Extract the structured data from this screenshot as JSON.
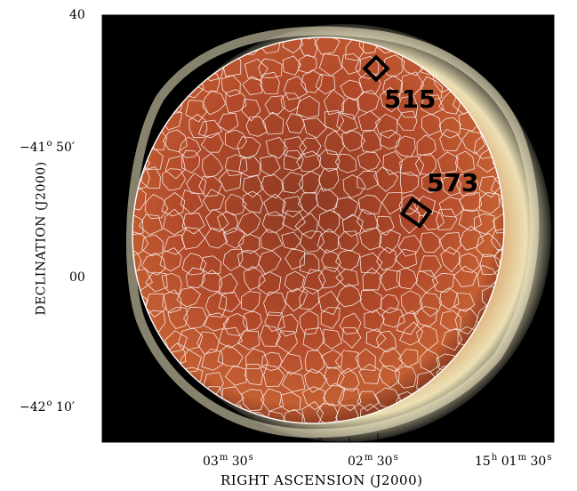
{
  "axes": {
    "y_title": "DECLINATION (J2000)",
    "x_title": "RIGHT ASCENSION (J2000)",
    "y_ticks": [
      {
        "deg": "",
        "min": "40"
      },
      {
        "deg": "−41",
        "min": "50"
      },
      {
        "deg": "",
        "min": "00"
      },
      {
        "deg": "−42",
        "min": "10"
      }
    ],
    "x_ticks": [
      {
        "h": "",
        "m": "03",
        "s": "30"
      },
      {
        "h": "",
        "m": "02",
        "s": "30"
      },
      {
        "h": "15",
        "m": "01",
        "s": "30"
      }
    ]
  },
  "regions": [
    {
      "label": "515"
    },
    {
      "label": "573"
    }
  ],
  "colors": {
    "background": "#000000",
    "shell": "#e8d6a6",
    "interior": "#b04a26",
    "tessellation": "#ffffff",
    "region_marker": "#000000"
  }
}
